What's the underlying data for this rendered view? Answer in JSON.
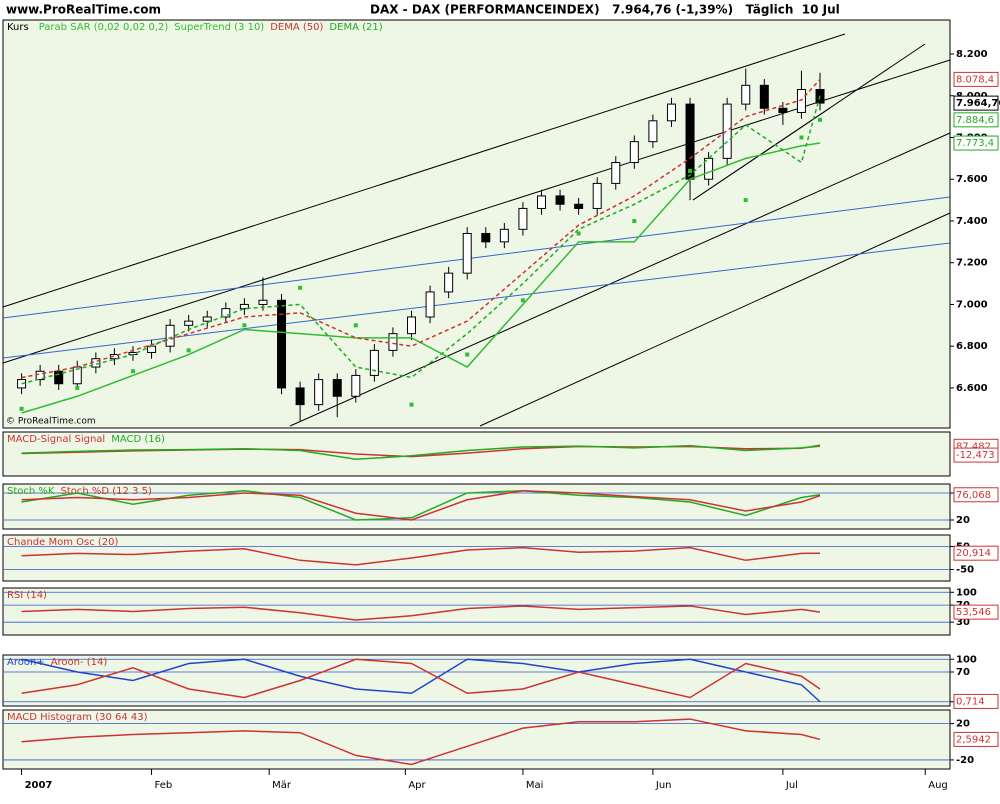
{
  "header": {
    "site": "www.ProRealTime.com",
    "title": "DAX - DAX (PERFORMANCEINDEX)   7.964,76 (-1,39%)   Täglich  10 Jul",
    "watermark": "© ProRealTime.com"
  },
  "chart_data": [
    {
      "type": "candlestick",
      "name": "Kurs",
      "x": [
        0,
        3,
        6,
        9,
        12,
        15,
        18,
        21,
        24,
        27,
        30,
        33,
        36,
        39,
        42,
        45,
        48,
        51,
        54,
        57,
        60,
        63,
        66,
        69,
        72,
        75,
        78,
        81,
        84,
        87,
        90,
        93,
        96,
        99,
        102,
        105,
        108,
        111,
        114,
        117,
        120,
        123,
        126,
        129
      ],
      "open": [
        6600,
        6640,
        6680,
        6620,
        6700,
        6740,
        6760,
        6770,
        6800,
        6900,
        6920,
        6940,
        6980,
        7000,
        7020,
        6600,
        6520,
        6640,
        6560,
        6660,
        6780,
        6860,
        6940,
        7060,
        7150,
        7340,
        7300,
        7360,
        7460,
        7520,
        7480,
        7460,
        7580,
        7680,
        7780,
        7880,
        7960,
        7600,
        7700,
        7960,
        8050,
        7940,
        7920,
        8030
      ],
      "high": [
        6670,
        6710,
        6710,
        6730,
        6770,
        6790,
        6800,
        6830,
        6930,
        6950,
        6970,
        7010,
        7030,
        7130,
        7050,
        6630,
        6670,
        6670,
        6690,
        6810,
        6890,
        6970,
        7090,
        7180,
        7370,
        7370,
        7390,
        7490,
        7550,
        7550,
        7510,
        7610,
        7710,
        7810,
        7910,
        7990,
        7990,
        7730,
        7990,
        8130,
        8080,
        7970,
        8120,
        8110
      ],
      "low": [
        6570,
        6610,
        6590,
        6590,
        6670,
        6710,
        6730,
        6740,
        6770,
        6870,
        6890,
        6910,
        6950,
        6970,
        6570,
        6440,
        6490,
        6460,
        6530,
        6630,
        6750,
        6830,
        6910,
        7030,
        7120,
        7270,
        7270,
        7330,
        7430,
        7450,
        7430,
        7430,
        7550,
        7650,
        7750,
        7850,
        7500,
        7570,
        7670,
        7930,
        7910,
        7860,
        7890,
        7930
      ],
      "close": [
        6640,
        6680,
        6620,
        6700,
        6740,
        6760,
        6770,
        6800,
        6900,
        6920,
        6940,
        6980,
        7000,
        7020,
        6600,
        6520,
        6640,
        6560,
        6660,
        6780,
        6860,
        6940,
        7060,
        7150,
        7340,
        7300,
        7360,
        7460,
        7520,
        7480,
        7460,
        7580,
        7680,
        7780,
        7880,
        7960,
        7600,
        7700,
        7960,
        8050,
        7940,
        7920,
        8030,
        7964.76
      ],
      "series": [
        {
          "name": "Parab SAR (0,02 0,02 0,2)",
          "color": "#33bb33",
          "style": "dots",
          "x": [
            0,
            9,
            18,
            27,
            36,
            45,
            54,
            63,
            72,
            81,
            90,
            99,
            108,
            117,
            126,
            129
          ],
          "values": [
            6500,
            6600,
            6680,
            6780,
            6900,
            7080,
            6900,
            6520,
            6760,
            7020,
            7340,
            7400,
            7640,
            7500,
            7800,
            7884.6
          ]
        },
        {
          "name": "SuperTrend (3 10)",
          "color": "#33bb33",
          "style": "solid",
          "x": [
            0,
            9,
            18,
            27,
            36,
            45,
            54,
            63,
            72,
            81,
            90,
            99,
            108,
            117,
            126,
            129
          ],
          "values": [
            6480,
            6560,
            6660,
            6760,
            6880,
            6860,
            6840,
            6840,
            6700,
            7000,
            7300,
            7300,
            7600,
            7700,
            7760,
            7773.4
          ]
        },
        {
          "name": "DEMA (50)",
          "color": "#cc3333",
          "style": "dashed",
          "x": [
            0,
            9,
            18,
            27,
            36,
            45,
            54,
            63,
            72,
            81,
            90,
            99,
            108,
            117,
            126,
            129
          ],
          "values": [
            6650,
            6700,
            6780,
            6860,
            6940,
            6960,
            6840,
            6800,
            6920,
            7150,
            7380,
            7520,
            7700,
            7900,
            7980,
            8078.4
          ]
        },
        {
          "name": "DEMA (21)",
          "color": "#22aa22",
          "style": "dashed",
          "x": [
            0,
            9,
            18,
            27,
            36,
            45,
            54,
            63,
            72,
            81,
            90,
            99,
            108,
            117,
            126,
            129
          ],
          "values": [
            6620,
            6690,
            6760,
            6880,
            6980,
            7000,
            6700,
            6650,
            6860,
            7100,
            7360,
            7480,
            7620,
            7860,
            7680,
            8000
          ]
        }
      ],
      "tags": [
        {
          "value": 8078.4,
          "label": "8.078,4",
          "color": "#cc3333"
        },
        {
          "value": 7964.76,
          "label": "7.964,76",
          "color": "#000000"
        },
        {
          "value": 7884.6,
          "label": "7.884,6",
          "color": "#22aa22"
        },
        {
          "value": 7773.4,
          "label": "7.773,4",
          "color": "#22aa22"
        }
      ],
      "ylim": [
        6408,
        8363
      ],
      "yticks": [
        {
          "value": 6600,
          "label": "6.600"
        },
        {
          "value": 6800,
          "label": "6.800"
        },
        {
          "value": 7000,
          "label": "7.000"
        },
        {
          "value": 7200,
          "label": "7.200"
        },
        {
          "value": 7400,
          "label": "7.400"
        },
        {
          "value": 7600,
          "label": "7.600"
        },
        {
          "value": 7800,
          "label": "7.800"
        },
        {
          "value": 8000,
          "label": "8.000"
        },
        {
          "value": 8200,
          "label": "8.200"
        }
      ],
      "xlim": [
        -3,
        150
      ],
      "xticks": [
        {
          "value": 0,
          "label": "2007"
        },
        {
          "value": 21,
          "label": "Feb"
        },
        {
          "value": 40,
          "label": "Mär"
        },
        {
          "value": 62,
          "label": "Apr"
        },
        {
          "value": 81,
          "label": "Mai"
        },
        {
          "value": 102,
          "label": "Jun"
        },
        {
          "value": 123,
          "label": "Jul"
        },
        {
          "value": 146,
          "label": "Aug"
        }
      ]
    },
    {
      "type": "line",
      "ylim": [
        -250,
        250
      ],
      "yticks": [],
      "series": [
        {
          "name": "MACD-Signal Signal",
          "color": "#cc3333",
          "x": [
            0,
            9,
            18,
            27,
            36,
            45,
            54,
            63,
            72,
            81,
            90,
            99,
            108,
            117,
            126,
            129
          ],
          "values": [
            5,
            20,
            35,
            45,
            55,
            50,
            0,
            -30,
            10,
            60,
            85,
            80,
            85,
            60,
            65,
            99
          ]
        },
        {
          "name": "MACD (16)",
          "color": "#22aa22",
          "x": [
            0,
            9,
            18,
            27,
            36,
            45,
            54,
            63,
            72,
            81,
            90,
            99,
            108,
            117,
            126,
            129
          ],
          "values": [
            10,
            30,
            45,
            50,
            60,
            40,
            -60,
            -20,
            40,
            80,
            90,
            70,
            95,
            40,
            70,
            87.482
          ]
        }
      ],
      "tags": [
        {
          "value": 87.482,
          "label": "87,482",
          "color": "#cc3333"
        },
        {
          "value": -12.473,
          "label": "-12,473",
          "color": "#cc3333"
        }
      ]
    },
    {
      "type": "line",
      "ylim": [
        0,
        100
      ],
      "yticks": [
        20,
        80
      ],
      "series": [
        {
          "name": "Stoch %K",
          "color": "#22aa22",
          "x": [
            0,
            9,
            18,
            27,
            36,
            45,
            54,
            63,
            72,
            81,
            90,
            99,
            108,
            117,
            126,
            129
          ],
          "values": [
            60,
            80,
            55,
            75,
            85,
            70,
            20,
            25,
            80,
            85,
            75,
            70,
            60,
            30,
            70,
            76.068
          ]
        },
        {
          "name": "Stoch %D (12 3 5)",
          "color": "#cc3333",
          "x": [
            0,
            9,
            18,
            27,
            36,
            45,
            54,
            63,
            72,
            81,
            90,
            99,
            108,
            117,
            126,
            129
          ],
          "values": [
            65,
            70,
            65,
            70,
            80,
            75,
            35,
            20,
            65,
            85,
            80,
            72,
            65,
            40,
            60,
            74
          ]
        }
      ],
      "tags": [
        {
          "value": 76.068,
          "label": "76,068",
          "color": "#cc3333"
        }
      ]
    },
    {
      "type": "line",
      "ylim": [
        -100,
        100
      ],
      "yticks": [
        -50,
        50
      ],
      "series": [
        {
          "name": "Chande Mom Osc (20)",
          "color": "#cc3333",
          "x": [
            0,
            9,
            18,
            27,
            36,
            45,
            54,
            63,
            72,
            81,
            90,
            99,
            108,
            117,
            126,
            129
          ],
          "values": [
            10,
            20,
            15,
            30,
            40,
            -10,
            -30,
            0,
            35,
            45,
            25,
            30,
            45,
            -10,
            20,
            20.914
          ]
        }
      ],
      "tags": [
        {
          "value": 20.914,
          "label": "20,914",
          "color": "#cc3333"
        }
      ]
    },
    {
      "type": "line",
      "ylim": [
        0,
        110
      ],
      "yticks": [
        30,
        70,
        100
      ],
      "series": [
        {
          "name": "RSI (14)",
          "color": "#cc3333",
          "x": [
            0,
            9,
            18,
            27,
            36,
            45,
            54,
            63,
            72,
            81,
            90,
            99,
            108,
            117,
            126,
            129
          ],
          "values": [
            55,
            60,
            55,
            62,
            65,
            52,
            35,
            45,
            62,
            68,
            60,
            64,
            68,
            48,
            60,
            53.546
          ]
        }
      ],
      "tags": [
        {
          "value": 53.546,
          "label": "53,546",
          "color": "#cc3333"
        }
      ]
    },
    {
      "type": "line",
      "ylim": [
        -10,
        110
      ],
      "yticks": [
        0,
        70,
        100
      ],
      "series": [
        {
          "name": "Aroon+",
          "color": "#2244cc",
          "x": [
            0,
            9,
            18,
            27,
            36,
            45,
            54,
            63,
            72,
            81,
            90,
            99,
            108,
            117,
            126,
            129
          ],
          "values": [
            100,
            70,
            50,
            90,
            100,
            60,
            30,
            20,
            100,
            90,
            70,
            90,
            100,
            70,
            40,
            0
          ]
        },
        {
          "name": "Aroon- (14)",
          "color": "#cc3333",
          "x": [
            0,
            9,
            18,
            27,
            36,
            45,
            54,
            63,
            72,
            81,
            90,
            99,
            108,
            117,
            126,
            129
          ],
          "values": [
            20,
            40,
            80,
            30,
            10,
            50,
            100,
            90,
            20,
            30,
            70,
            40,
            10,
            90,
            60,
            30
          ]
        }
      ],
      "tags": [
        {
          "value": 0.714,
          "label": "0,714",
          "color": "#cc3333"
        }
      ]
    },
    {
      "type": "line",
      "ylim": [
        -30,
        35
      ],
      "yticks": [
        -20,
        20
      ],
      "series": [
        {
          "name": "MACD Histogram (30 64 43)",
          "color": "#cc3333",
          "x": [
            0,
            9,
            18,
            27,
            36,
            45,
            54,
            63,
            72,
            81,
            90,
            99,
            108,
            117,
            126,
            129
          ],
          "values": [
            0,
            5,
            8,
            10,
            12,
            10,
            -15,
            -25,
            -5,
            15,
            22,
            22,
            25,
            12,
            8,
            2.5942
          ]
        }
      ],
      "tags": [
        {
          "value": 2.5942,
          "label": "2,5942",
          "color": "#cc3333"
        }
      ]
    }
  ]
}
